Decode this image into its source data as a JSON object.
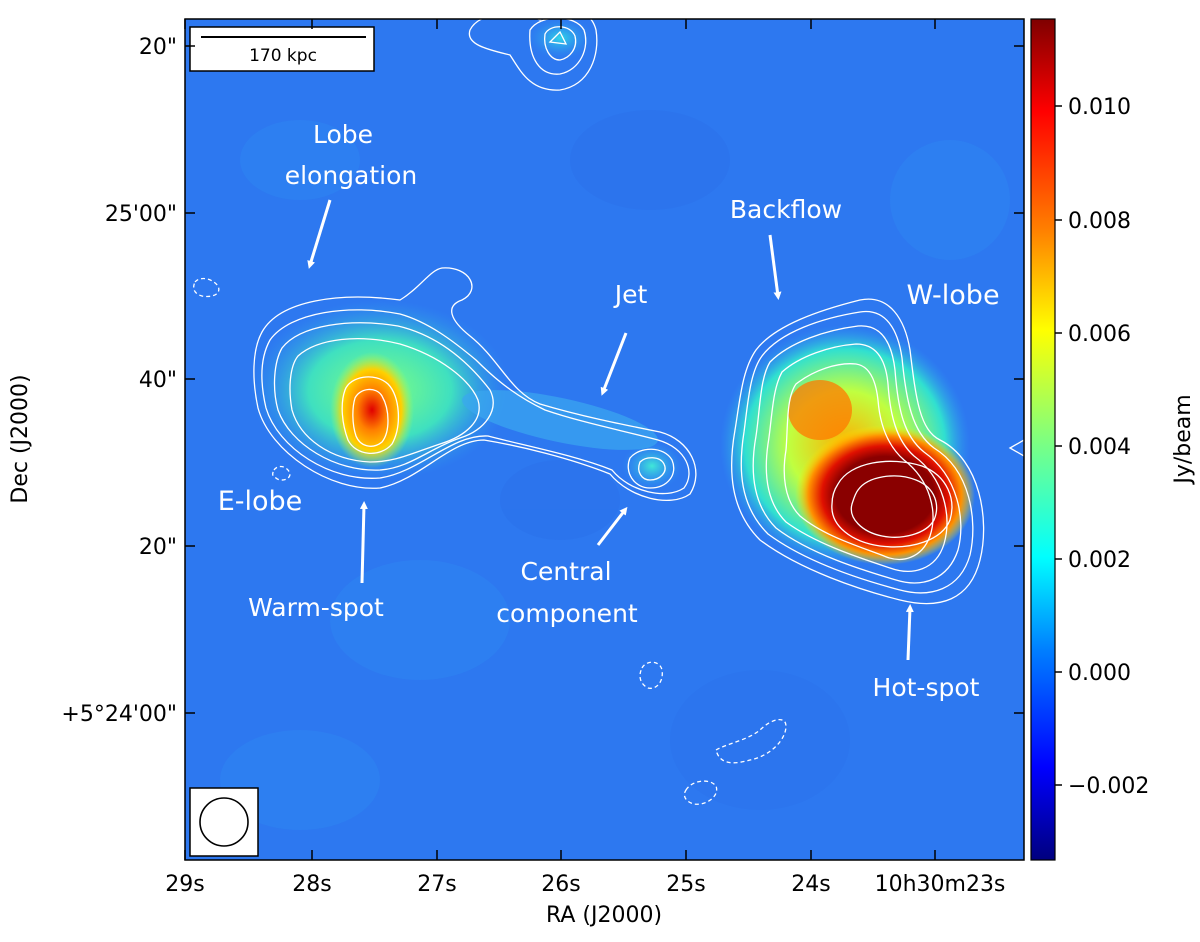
{
  "scale_bar": {
    "label": "170 kpc"
  },
  "axes": {
    "xlabel": "RA (J2000)",
    "ylabel": "Dec (J2000)",
    "x_ticks": [
      "29s",
      "28s",
      "27s",
      "26s",
      "25s",
      "24s",
      "10h30m23s"
    ],
    "y_ticks": [
      "20\"",
      "25'00\"",
      "40\"",
      "20\"",
      "+5°24'00\""
    ]
  },
  "colorbar": {
    "label": "Jy/beam",
    "ticks": [
      "0.010",
      "0.008",
      "0.006",
      "0.004",
      "0.002",
      "0.000",
      "−0.002"
    ],
    "range": [
      -0.0033,
      0.0115
    ],
    "colormap": "jet",
    "colors": [
      "#00007f",
      "#0000ff",
      "#007fff",
      "#00ffff",
      "#7fff7f",
      "#ffff00",
      "#ff7f00",
      "#ff0000",
      "#7f0000"
    ]
  },
  "annotations": {
    "lobe_elongation": [
      "Lobe",
      "elongation"
    ],
    "backflow": "Backflow",
    "jet": "Jet",
    "w_lobe": "W-lobe",
    "e_lobe": "E-lobe",
    "central_component": [
      "Central",
      "component"
    ],
    "warm_spot": "Warm-spot",
    "hot_spot": "Hot-spot"
  },
  "background_color": "#2d78f0",
  "contour_color": "#ffffff"
}
